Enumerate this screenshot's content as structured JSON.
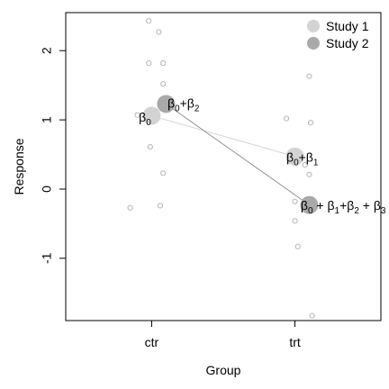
{
  "chart_data": {
    "type": "scatter",
    "xlabel": "Group",
    "ylabel": "Response",
    "categories": [
      "ctr",
      "trt"
    ],
    "ylim": [
      -1.9,
      2.55
    ],
    "xlim": [
      0.4,
      2.6
    ],
    "y_ticks": [
      -1,
      0,
      1,
      2
    ],
    "grid": false,
    "legend_position": "top-right",
    "legend": [
      {
        "name": "Study 1",
        "color": "#d3d3d3"
      },
      {
        "name": "Study 2",
        "color": "#a9a9a9"
      }
    ],
    "raw_points": [
      {
        "x": 0.98,
        "y": 2.43
      },
      {
        "x": 1.05,
        "y": 2.27
      },
      {
        "x": 0.98,
        "y": 1.82
      },
      {
        "x": 1.08,
        "y": 1.82
      },
      {
        "x": 1.08,
        "y": 1.52
      },
      {
        "x": 0.9,
        "y": 1.07
      },
      {
        "x": 0.99,
        "y": 0.61
      },
      {
        "x": 1.08,
        "y": 0.23
      },
      {
        "x": 0.85,
        "y": -0.27
      },
      {
        "x": 1.06,
        "y": -0.24
      },
      {
        "x": 2.1,
        "y": 1.63
      },
      {
        "x": 1.94,
        "y": 1.02
      },
      {
        "x": 2.11,
        "y": 0.96
      },
      {
        "x": 2.07,
        "y": 0.35
      },
      {
        "x": 2.1,
        "y": 0.21
      },
      {
        "x": 2.0,
        "y": -0.18
      },
      {
        "x": 2.0,
        "y": -0.46
      },
      {
        "x": 2.02,
        "y": -0.83
      },
      {
        "x": 2.12,
        "y": -1.83
      }
    ],
    "series": [
      {
        "name": "Study 1",
        "color": "#d3d3d3",
        "x": [
          1,
          2
        ],
        "y": [
          1.06,
          0.47
        ]
      },
      {
        "name": "Study 2",
        "color": "#a9a9a9",
        "x": [
          1.1,
          2.1
        ],
        "y": [
          1.23,
          -0.23
        ]
      }
    ],
    "annotations": [
      {
        "x": 0.91,
        "y": 1.03,
        "parts": [
          [
            "β",
            ""
          ],
          [
            "0",
            "sub"
          ]
        ]
      },
      {
        "x": 1.11,
        "y": 1.23,
        "parts": [
          [
            "β",
            ""
          ],
          [
            "0",
            "sub"
          ],
          [
            "+β",
            ""
          ],
          [
            "2",
            "sub"
          ]
        ]
      },
      {
        "x": 1.94,
        "y": 0.45,
        "parts": [
          [
            "β",
            ""
          ],
          [
            "0",
            "sub"
          ],
          [
            "+β",
            ""
          ],
          [
            "1",
            "sub"
          ]
        ]
      },
      {
        "x": 2.04,
        "y": -0.25,
        "parts": [
          [
            "β",
            ""
          ],
          [
            "0",
            "sub"
          ],
          [
            " + β",
            ""
          ],
          [
            "1",
            "sub"
          ],
          [
            "+β",
            ""
          ],
          [
            "2",
            "sub"
          ],
          [
            " + β",
            ""
          ],
          [
            "3",
            "sub"
          ]
        ]
      }
    ]
  }
}
